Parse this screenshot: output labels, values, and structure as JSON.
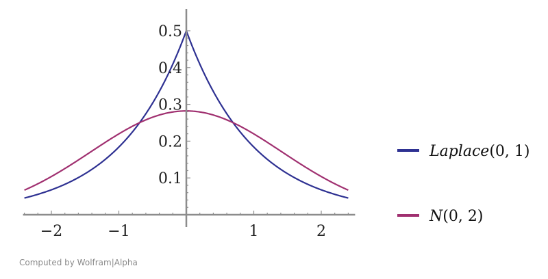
{
  "chart_data": {
    "type": "line",
    "xlim": [
      -2.4,
      2.4
    ],
    "ylim": [
      0,
      0.5
    ],
    "x_ticks": [
      -2,
      -1,
      1,
      2
    ],
    "x_tick_labels": [
      "−2",
      "−1",
      "1",
      "2"
    ],
    "y_ticks": [
      0.1,
      0.2,
      0.3,
      0.4,
      0.5
    ],
    "y_tick_labels": [
      "0.1",
      "0.2",
      "0.3",
      "0.4",
      "0.5"
    ],
    "grid": false,
    "legend_position": "right",
    "series": [
      {
        "name": "Laplace(0, 1)",
        "name_italic": "Laplace",
        "name_rest": "(0, 1)",
        "color": "#2e3192",
        "x": [
          -2.4,
          -2.0,
          -1.5,
          -1.0,
          -0.75,
          -0.5,
          -0.25,
          0.0,
          0.25,
          0.5,
          0.75,
          1.0,
          1.5,
          2.0,
          2.4
        ],
        "y": [
          0.0454,
          0.0677,
          0.1116,
          0.1839,
          0.2362,
          0.3033,
          0.3894,
          0.5,
          0.3894,
          0.3033,
          0.2362,
          0.1839,
          0.1116,
          0.0677,
          0.0454
        ]
      },
      {
        "name": "N(0, 2)",
        "name_italic": "N",
        "name_rest": "(0, 2)",
        "color": "#a03070",
        "x": [
          -2.4,
          -2.0,
          -1.5,
          -1.0,
          -0.75,
          -0.5,
          -0.25,
          0.0,
          0.25,
          0.5,
          0.75,
          1.0,
          1.5,
          2.0,
          2.4
        ],
        "y": [
          0.0675,
          0.1038,
          0.1595,
          0.2197,
          0.2455,
          0.265,
          0.278,
          0.2821,
          0.278,
          0.265,
          0.2455,
          0.2197,
          0.1595,
          0.1038,
          0.0675
        ]
      }
    ]
  },
  "footer": {
    "text": "Computed by Wolfram|Alpha"
  }
}
